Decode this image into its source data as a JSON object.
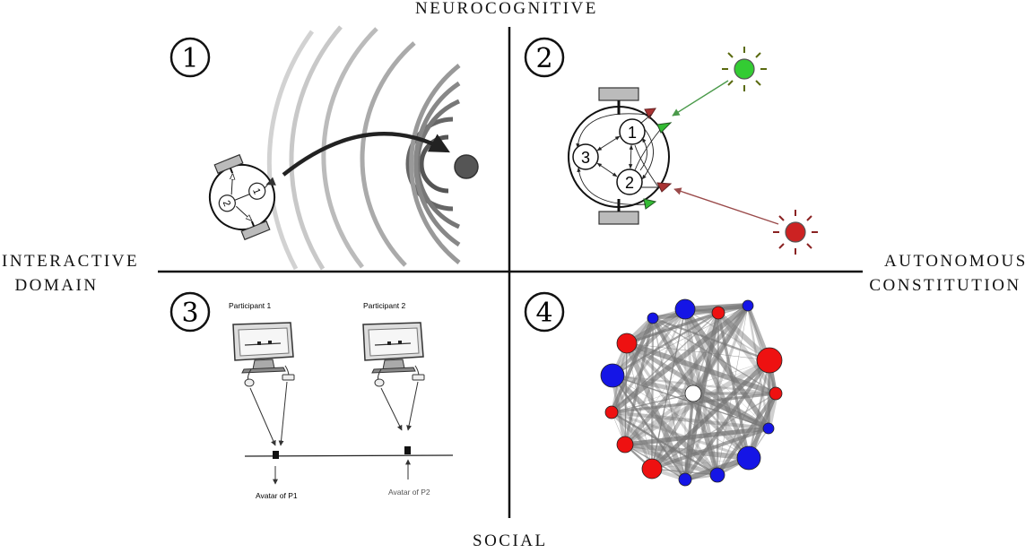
{
  "axes": {
    "top": "NEUROCOGNITIVE",
    "bottom": "SOCIAL",
    "left_line1": "INTERACTIVE",
    "left_line2": "DOMAIN",
    "right_line1": "AUTONOMOUS",
    "right_line2": "CONSTITUTION"
  },
  "quadrants": [
    {
      "badge": "1",
      "robot_labels": [
        "1",
        "2"
      ]
    },
    {
      "badge": "2",
      "node_labels": [
        "1",
        "2",
        "3"
      ]
    },
    {
      "badge": "3",
      "participant1": "Participant 1",
      "participant2": "Participant 2",
      "avatar1": "Avatar of P1",
      "avatar2": "Avatar of P2"
    },
    {
      "badge": "4"
    }
  ],
  "colors": {
    "light_green": "#33cc33",
    "light_red": "#cc2222",
    "sensor_green": "#33bb33",
    "sensor_red": "#aa2a2a",
    "network_red": "#ee1111",
    "network_blue": "#1515e6"
  }
}
